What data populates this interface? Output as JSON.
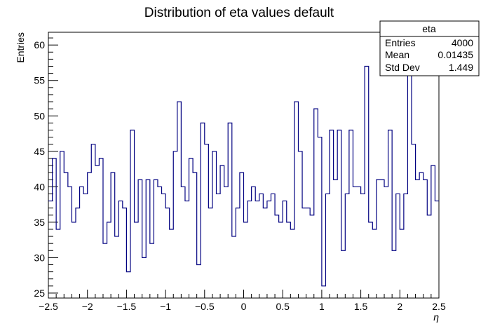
{
  "chart_data": {
    "type": "histogram",
    "title": "Distribution of eta values default",
    "xlabel": "η",
    "ylabel": "Entries",
    "xlim": [
      -2.5,
      2.5
    ],
    "ylim": [
      24.3,
      61.8
    ],
    "x_ticks": [
      -2.5,
      -2,
      -1.5,
      -1,
      -0.5,
      0,
      0.5,
      1,
      1.5,
      2,
      2.5
    ],
    "x_tick_labels": [
      "−2.5",
      "−2",
      "−1.5",
      "−1",
      "−0.5",
      "0",
      "0.5",
      "1",
      "1.5",
      "2",
      "2.5"
    ],
    "y_ticks": [
      25,
      30,
      35,
      40,
      45,
      50,
      55,
      60
    ],
    "y_tick_labels": [
      "25",
      "30",
      "35",
      "40",
      "45",
      "50",
      "55",
      "60"
    ],
    "bin_edges_range": [
      -2.5,
      2.5
    ],
    "bin_count": 100,
    "values": [
      38,
      44,
      34,
      45,
      42,
      40,
      35,
      37,
      40,
      39,
      42,
      46,
      43,
      44,
      32,
      35,
      42,
      33,
      38,
      37,
      28,
      48,
      35,
      41,
      30,
      41,
      32,
      41,
      40,
      39,
      37,
      34,
      45,
      52,
      40,
      38,
      44,
      42,
      29,
      49,
      46,
      37,
      45,
      39,
      43,
      40,
      49,
      33,
      37,
      42,
      35,
      38,
      40,
      38,
      39,
      37,
      38,
      39,
      36,
      35,
      38,
      35,
      34,
      52,
      45,
      37,
      37,
      36,
      51,
      47,
      26,
      39,
      48,
      41,
      48,
      31,
      39,
      48,
      40,
      40,
      39,
      57,
      35,
      34,
      41,
      41,
      40,
      48,
      31,
      39,
      34,
      39,
      58,
      46,
      41,
      42,
      41,
      36,
      43,
      38
    ],
    "grid": false,
    "legend": "none",
    "stats_box": {
      "name": "eta",
      "rows": [
        {
          "label": "Entries",
          "value": "4000"
        },
        {
          "label": "Mean",
          "value": "0.01435"
        },
        {
          "label": "Std Dev",
          "value": "1.449"
        }
      ]
    },
    "colors": {
      "line": "#000080",
      "axes": "#000000",
      "background": "#ffffff"
    }
  }
}
